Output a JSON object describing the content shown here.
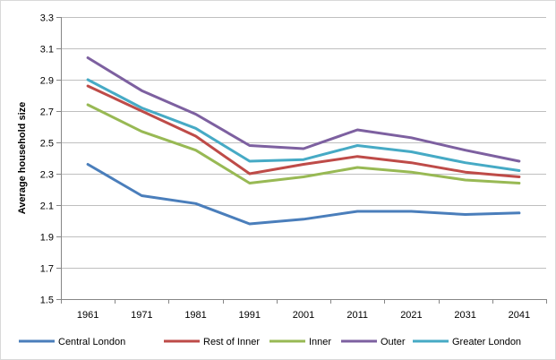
{
  "chart_data": {
    "type": "line",
    "title": "",
    "xlabel": "",
    "ylabel": "Average household size",
    "categories": [
      "1961",
      "1971",
      "1981",
      "1991",
      "2001",
      "2011",
      "2021",
      "2031",
      "2041"
    ],
    "ylim": [
      1.5,
      3.3
    ],
    "yticks": [
      "1.5",
      "1.7",
      "1.9",
      "2.1",
      "2.3",
      "2.5",
      "2.7",
      "2.9",
      "3.1",
      "3.3"
    ],
    "grid": true,
    "legend_position": "bottom",
    "series": [
      {
        "name": "Central London",
        "color": "#4a7ebb",
        "values": [
          2.36,
          2.16,
          2.11,
          1.98,
          2.01,
          2.06,
          2.06,
          2.04,
          2.05
        ]
      },
      {
        "name": "Rest of Inner",
        "color": "#be4b48",
        "values": [
          2.86,
          2.7,
          2.54,
          2.3,
          2.36,
          2.41,
          2.37,
          2.31,
          2.28
        ]
      },
      {
        "name": "Inner",
        "color": "#98b954",
        "values": [
          2.74,
          2.57,
          2.45,
          2.24,
          2.28,
          2.34,
          2.31,
          2.26,
          2.24
        ]
      },
      {
        "name": "Outer",
        "color": "#7d60a0",
        "values": [
          3.04,
          2.83,
          2.68,
          2.48,
          2.46,
          2.58,
          2.53,
          2.45,
          2.38
        ]
      },
      {
        "name": "Greater London",
        "color": "#46aac5",
        "values": [
          2.9,
          2.72,
          2.59,
          2.38,
          2.39,
          2.48,
          2.44,
          2.37,
          2.32
        ]
      }
    ]
  }
}
